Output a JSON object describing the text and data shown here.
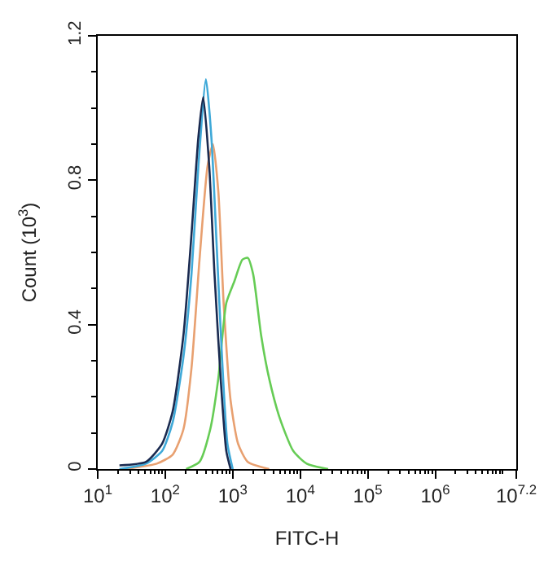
{
  "chart_data": {
    "type": "line",
    "xlabel": "FITC-H",
    "ylabel": "Count (10$^{3}$)",
    "log": "x",
    "marker": "none",
    "line_style": "solid",
    "xlim": [
      10,
      15848932
    ],
    "xticks": [
      {
        "value": 10,
        "label": "10$^{1}$"
      },
      {
        "value": 100,
        "label": "10$^{2}$"
      },
      {
        "value": 1000,
        "label": "10$^{3}$"
      },
      {
        "value": 10000,
        "label": "10$^{4}$"
      },
      {
        "value": 100000,
        "label": "10$^{5}$"
      },
      {
        "value": 1000000,
        "label": "10$^{6}$"
      },
      {
        "value": 15848932,
        "label": "10$^{7.2}$"
      }
    ],
    "ylim": [
      0,
      1.2
    ],
    "yticks": [
      0,
      0.4,
      0.8,
      1.2
    ],
    "series": [
      {
        "color": "#e8a070",
        "x": [
          25,
          75,
          129,
          186,
          245,
          322,
          424,
          509,
          611,
          733,
          929,
          1200,
          1668,
          3467
        ],
        "values": [
          0,
          0.015,
          0.04,
          0.11,
          0.28,
          0.58,
          0.84,
          0.9,
          0.77,
          0.46,
          0.19,
          0.07,
          0.02,
          0
        ]
      },
      {
        "color": "#66cc55",
        "x": [
          204,
          322,
          464,
          611,
          803,
          1057,
          1390,
          1668,
          2004,
          2636,
          3467,
          4989,
          7881,
          12445,
          25882
        ],
        "values": [
          0,
          0.02,
          0.11,
          0.25,
          0.46,
          0.52,
          0.58,
          0.585,
          0.54,
          0.37,
          0.25,
          0.14,
          0.05,
          0.015,
          0
        ]
      },
      {
        "color": "#3fa9d8",
        "x": [
          21,
          52,
          90,
          129,
          186,
          245,
          310,
          401,
          482,
          578,
          693,
          834,
          1000
        ],
        "values": [
          0,
          0.015,
          0.05,
          0.13,
          0.31,
          0.54,
          0.84,
          1.08,
          0.92,
          0.62,
          0.31,
          0.07,
          0
        ]
      },
      {
        "color": "#1a2a50",
        "x": [
          21,
          52,
          90,
          129,
          186,
          245,
          310,
          365,
          448,
          537,
          668,
          803,
          929
        ],
        "values": [
          0.01,
          0.02,
          0.07,
          0.16,
          0.37,
          0.65,
          0.92,
          1.03,
          0.84,
          0.54,
          0.24,
          0.05,
          0
        ]
      }
    ]
  }
}
